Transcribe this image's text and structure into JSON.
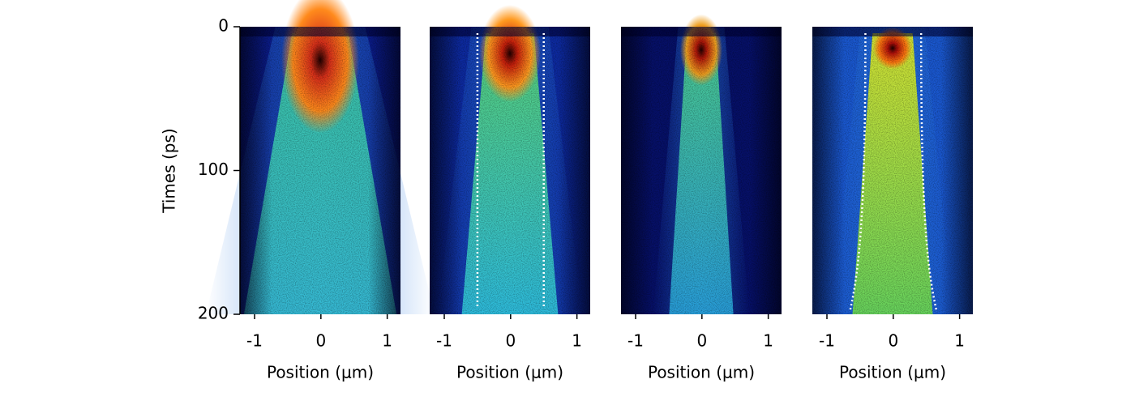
{
  "chart_data": [
    {
      "type": "heatmap",
      "xlabel": "Position (μm)",
      "ylabel": "Times (ps)",
      "xlim": [
        -1.22,
        1.2
      ],
      "xticks": [
        -1,
        0,
        1
      ],
      "ylim": [
        0,
        200
      ],
      "yticks": [
        0,
        100,
        200
      ]
    },
    {
      "type": "heatmap",
      "xlabel": "Position (μm)",
      "xlim": [
        -1.22,
        1.2
      ],
      "xticks": [
        -1,
        0,
        1
      ],
      "ylim": [
        0,
        200
      ]
    },
    {
      "type": "heatmap",
      "xlabel": "Position (μm)",
      "xlim": [
        -1.22,
        1.2
      ],
      "xticks": [
        -1,
        0,
        1
      ],
      "ylim": [
        0,
        200
      ]
    },
    {
      "type": "heatmap",
      "xlabel": "Position (μm)",
      "xlim": [
        -1.22,
        1.2
      ],
      "xticks": [
        -1,
        0,
        1
      ],
      "ylim": [
        0,
        200
      ]
    }
  ]
}
